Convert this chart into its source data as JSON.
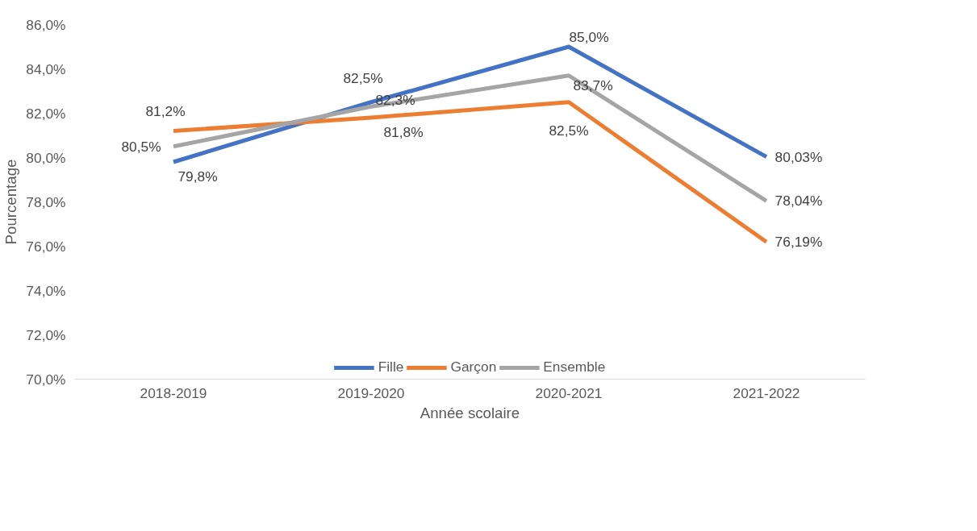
{
  "chart_data": {
    "type": "line",
    "xlabel": "Année scolaire",
    "ylabel": "Pourcentage",
    "categories": [
      "2018-2019",
      "2019-2020",
      "2020-2021",
      "2021-2022"
    ],
    "series": [
      {
        "name": "Fille",
        "color": "#4472c4",
        "values": [
          79.8,
          82.5,
          85.0,
          80.03
        ],
        "value_labels": [
          "79,8%",
          "82,5%",
          "85,0%",
          "80,03%"
        ]
      },
      {
        "name": "Garçon",
        "color": "#ed7d31",
        "values": [
          81.2,
          81.8,
          82.5,
          76.19
        ],
        "value_labels": [
          "81,2%",
          "81,8%",
          "82,5%",
          "76,19%"
        ]
      },
      {
        "name": "Ensemble",
        "color": "#a5a5a5",
        "values": [
          80.5,
          82.3,
          83.7,
          78.04
        ],
        "value_labels": [
          "80,5%",
          "82,3%",
          "83,7%",
          "78,04%"
        ]
      }
    ],
    "ylim": [
      70,
      86
    ],
    "yticks": [
      {
        "value": 70,
        "label": "70,0%"
      },
      {
        "value": 72,
        "label": "72,0%"
      },
      {
        "value": 74,
        "label": "74,0%"
      },
      {
        "value": 76,
        "label": "76,0%"
      },
      {
        "value": 78,
        "label": "78,0%"
      },
      {
        "value": 80,
        "label": "80,0%"
      },
      {
        "value": 82,
        "label": "82,0%"
      },
      {
        "value": 84,
        "label": "84,0%"
      },
      {
        "value": 86,
        "label": "86,0%"
      }
    ],
    "grid": false,
    "legend": "bottom",
    "marker": "none",
    "line_style": "solid"
  }
}
